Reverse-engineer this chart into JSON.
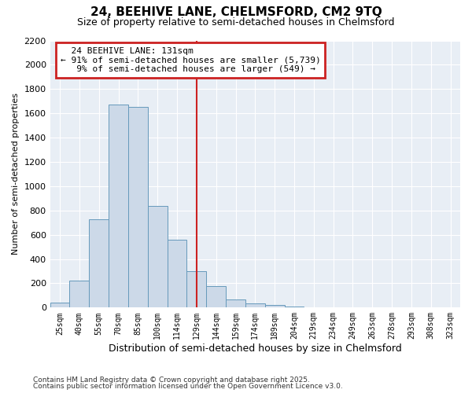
{
  "title": "24, BEEHIVE LANE, CHELMSFORD, CM2 9TQ",
  "subtitle": "Size of property relative to semi-detached houses in Chelmsford",
  "xlabel": "Distribution of semi-detached houses by size in Chelmsford",
  "ylabel": "Number of semi-detached properties",
  "bar_color": "#ccd9e8",
  "bar_edge_color": "#6699bb",
  "categories": [
    "25sqm",
    "40sqm",
    "55sqm",
    "70sqm",
    "85sqm",
    "100sqm",
    "114sqm",
    "129sqm",
    "144sqm",
    "159sqm",
    "174sqm",
    "189sqm",
    "204sqm",
    "219sqm",
    "234sqm",
    "249sqm",
    "263sqm",
    "278sqm",
    "293sqm",
    "308sqm",
    "323sqm"
  ],
  "values": [
    40,
    220,
    730,
    1670,
    1650,
    840,
    560,
    300,
    175,
    70,
    35,
    20,
    10,
    5,
    0,
    0,
    0,
    0,
    0,
    0,
    0
  ],
  "ylim": [
    0,
    2200
  ],
  "yticks": [
    0,
    200,
    400,
    600,
    800,
    1000,
    1200,
    1400,
    1600,
    1800,
    2000,
    2200
  ],
  "vline_index": 7,
  "property_line_label": "24 BEEHIVE LANE: 131sqm",
  "pct_smaller": 91,
  "count_smaller": 5739,
  "pct_larger": 9,
  "count_larger": 549,
  "annotation_box_color": "#ffffff",
  "annotation_box_edge": "#cc2222",
  "vline_color": "#cc2222",
  "footnote1": "Contains HM Land Registry data © Crown copyright and database right 2025.",
  "footnote2": "Contains public sector information licensed under the Open Government Licence v3.0.",
  "background_color": "#ffffff",
  "plot_bg_color": "#e8eef5"
}
